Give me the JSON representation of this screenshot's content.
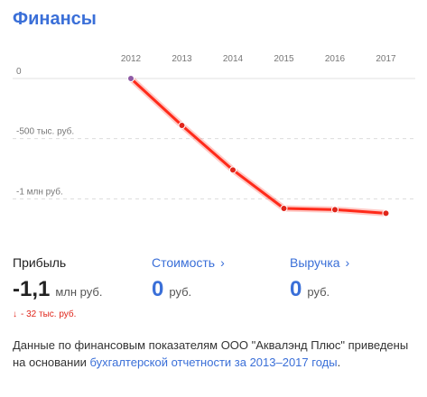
{
  "title": "Финансы",
  "chart_data": {
    "type": "line",
    "x": [
      "2012",
      "2013",
      "2014",
      "2015",
      "2016",
      "2017"
    ],
    "series": [
      {
        "values": [
          0,
          -390,
          -760,
          -1080,
          -1090,
          -1120
        ]
      }
    ],
    "y_tick_labels": [
      "0",
      "-500 тыс. руб.",
      "-1 млн руб."
    ],
    "y_tick_values": [
      0,
      -500,
      -1000
    ],
    "ylim": [
      -1200,
      0
    ],
    "grid": true,
    "colors": {
      "line": "#ff2a1a",
      "point": "#e0251a",
      "first_point": "#8e5aa5"
    }
  },
  "metrics": {
    "profit": {
      "label": "Прибыль",
      "value": "-1,1",
      "unit": "млн руб."
    },
    "cost": {
      "label": "Стоимость",
      "chevron": "›",
      "value": "0",
      "unit": "руб."
    },
    "revenue": {
      "label": "Выручка",
      "chevron": "›",
      "value": "0",
      "unit": "руб."
    }
  },
  "delta": {
    "arrow": "↓",
    "text": "- 32 тыс. руб.",
    "color": "#e0251a"
  },
  "note": {
    "text_before": "Данные по финансовым показателям ООО \"Аквалэнд Плюс\" приведены на основании ",
    "link_text": "бухгалтерской отчетности за 2013–2017 годы",
    "text_after": "."
  }
}
